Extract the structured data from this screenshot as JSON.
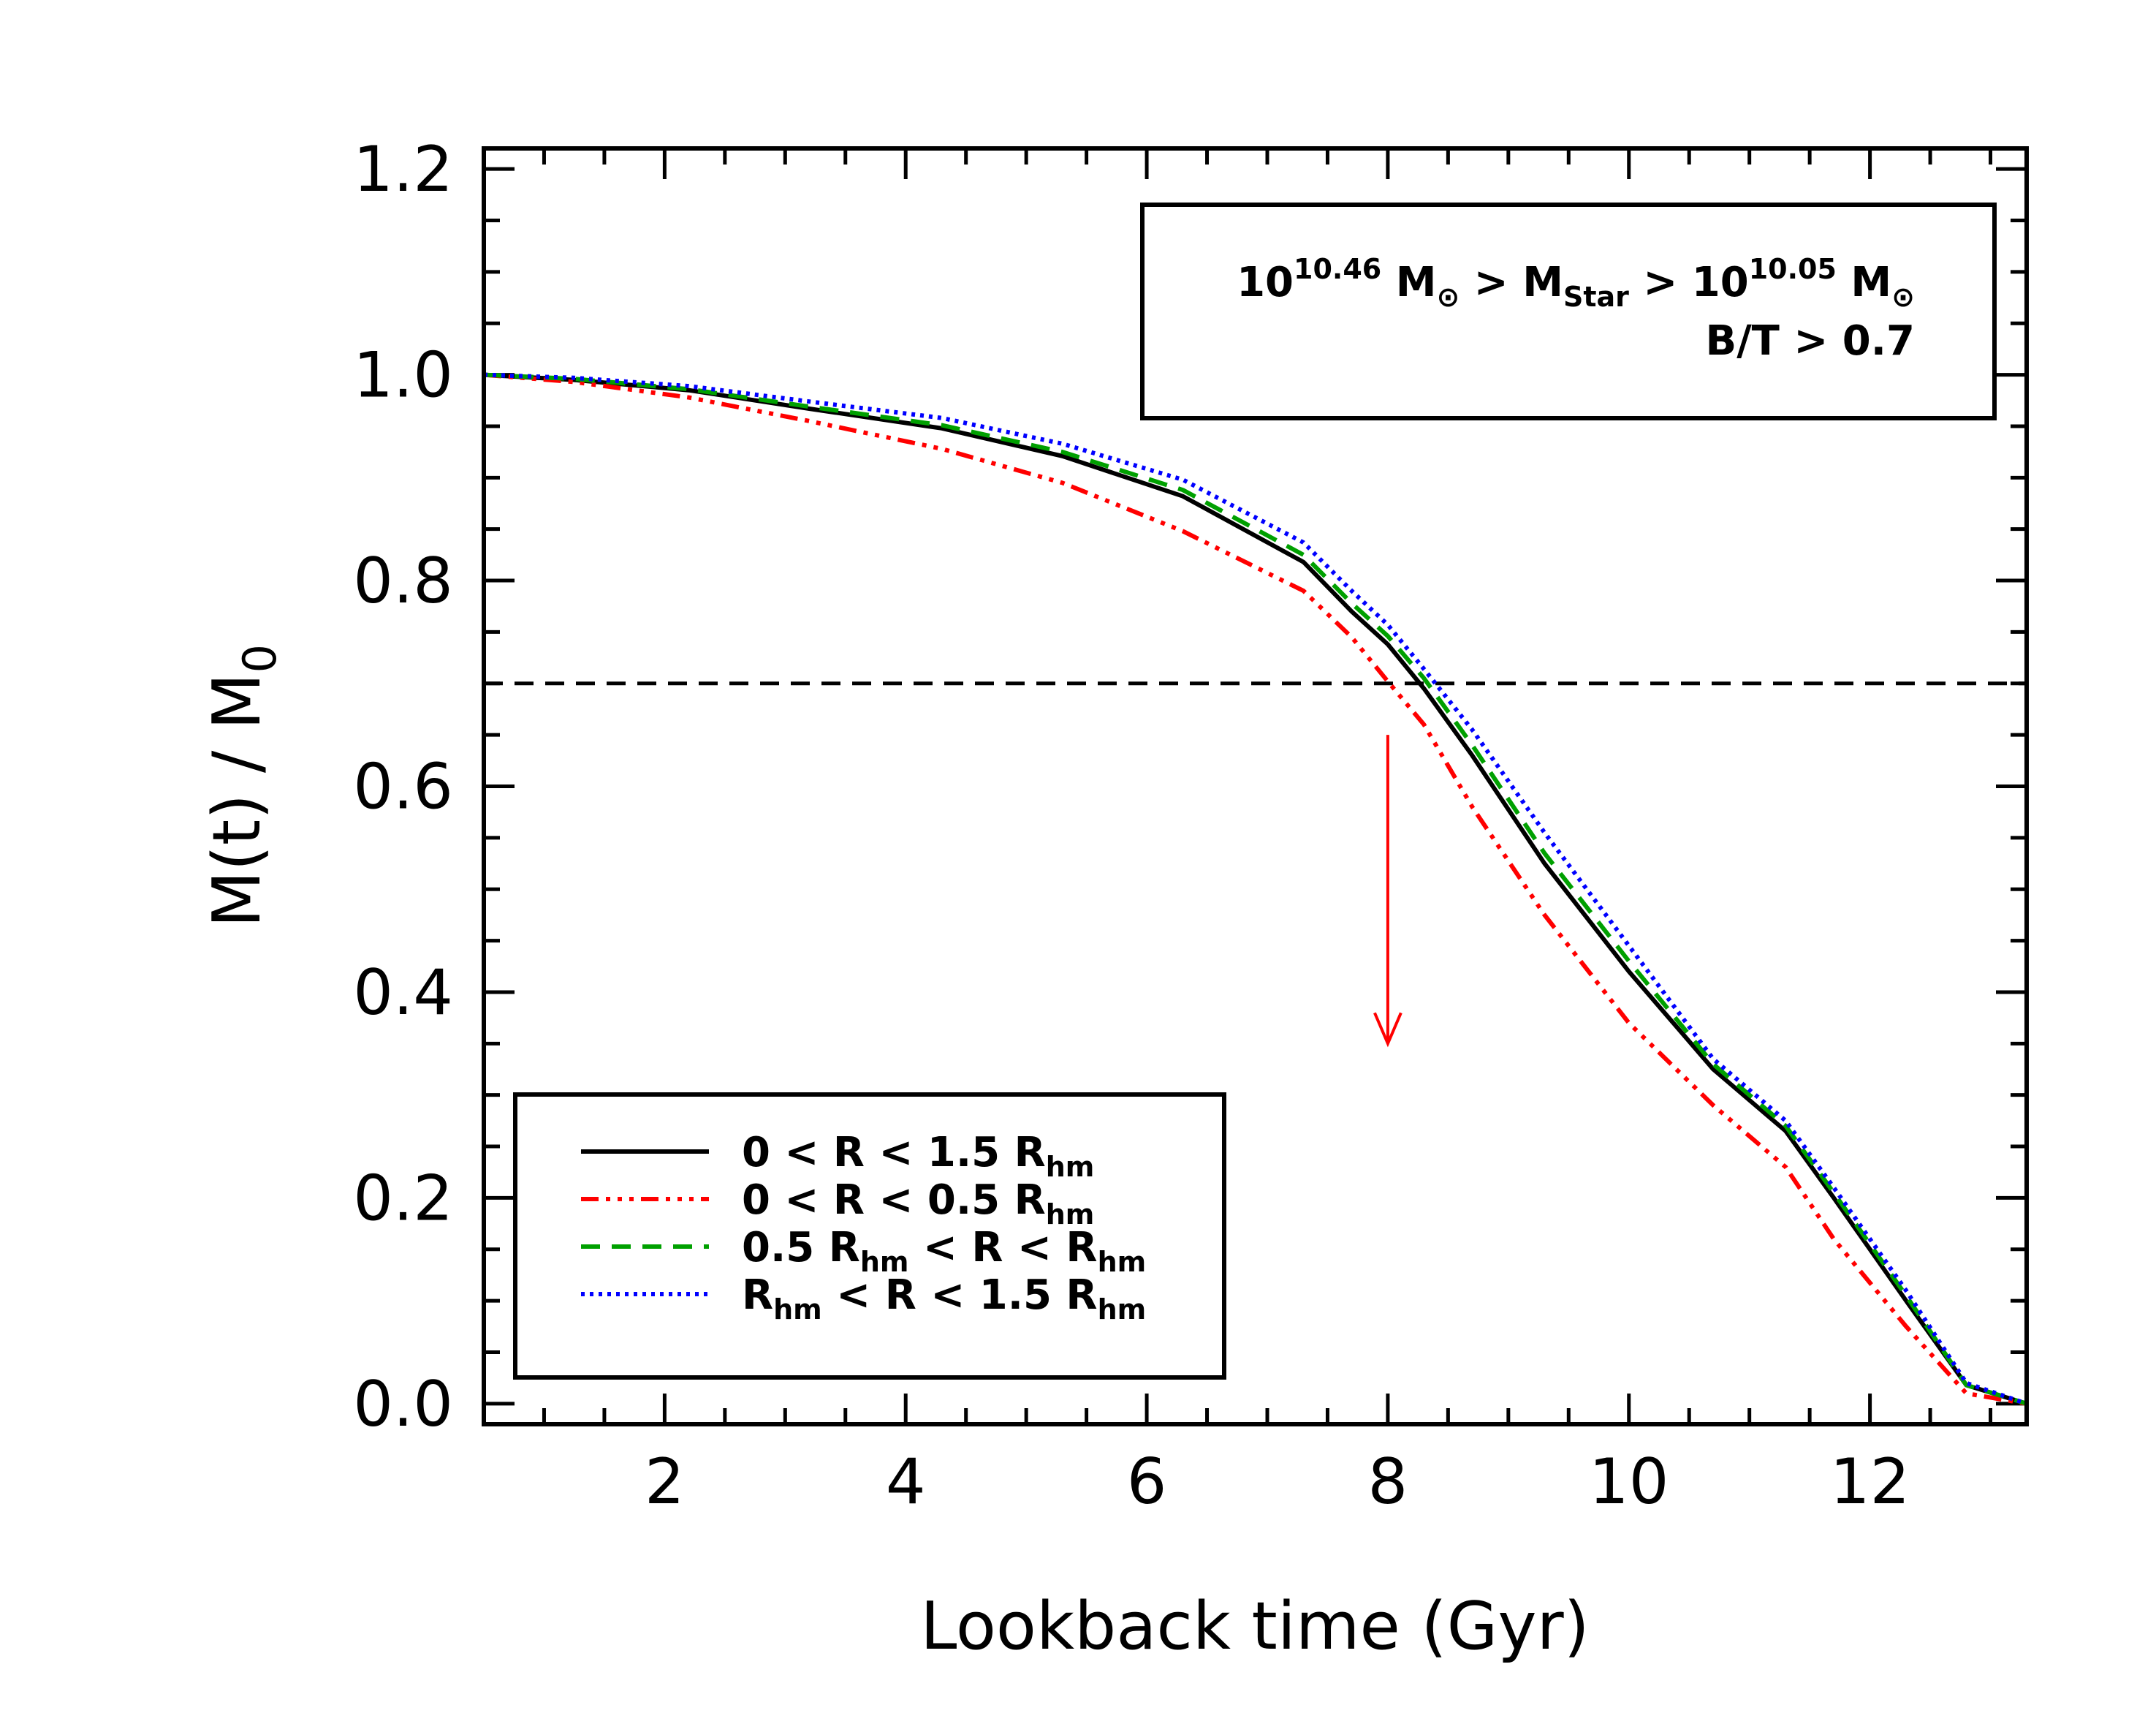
{
  "chart_data": {
    "type": "line",
    "xlabel": "Lookback time (Gyr)",
    "ylabel": "M(t) / M",
    "ylabel_sub": "0",
    "xlim": [
      0.5,
      13.3
    ],
    "ylim": [
      -0.02,
      1.22
    ],
    "xticks": [
      "2",
      "4",
      "6",
      "8",
      "10",
      "12"
    ],
    "yticks": [
      "0.0",
      "0.2",
      "0.4",
      "0.6",
      "0.8",
      "1.0",
      "1.2"
    ],
    "hline": {
      "y": 0.7,
      "style": "dashed",
      "color": "#000000"
    },
    "arrow": {
      "x": 8.0,
      "y_start": 0.65,
      "y_end": 0.35,
      "color": "#ff0000"
    },
    "info_box": {
      "line1": {
        "p1": "10",
        "e1": "10.46",
        "p2": " M",
        "s2": "⊙",
        "p3": " > M",
        "s3": "Star",
        "p4": " > 10",
        "e4": "10.05",
        "p5": " M",
        "s5": "⊙"
      },
      "line2": "B/T > 0.7"
    },
    "series": [
      {
        "name": "0 < R < 1.5 R_hm",
        "label": {
          "a": "0 < R < 1.5 R",
          "a_sub": "hm",
          "b": "",
          "b_sub": "",
          "c": ""
        },
        "color": "#000000",
        "dash": "none",
        "x": [
          0.5,
          1.25,
          2.2,
          3.2,
          4.3,
          5.3,
          6.3,
          7.3,
          7.7,
          8.0,
          8.3,
          8.7,
          9.3,
          10.0,
          10.7,
          11.3,
          11.7,
          12.3,
          12.8,
          13.3
        ],
        "y": [
          1.0,
          0.995,
          0.985,
          0.967,
          0.948,
          0.921,
          0.882,
          0.818,
          0.77,
          0.738,
          0.695,
          0.63,
          0.525,
          0.42,
          0.325,
          0.265,
          0.2,
          0.1,
          0.018,
          0.0
        ]
      },
      {
        "name": "0 < R < 0.5 R_hm",
        "label": {
          "a": "0 < R < 0.5 R",
          "a_sub": "hm",
          "b": "",
          "b_sub": "",
          "c": ""
        },
        "color": "#ff0000",
        "dash": "24,10,6,10,6,10,6,10",
        "x": [
          0.5,
          1.25,
          2.2,
          3.2,
          4.3,
          5.3,
          6.3,
          7.3,
          7.7,
          8.0,
          8.3,
          8.7,
          9.3,
          10.0,
          10.7,
          11.3,
          11.7,
          12.3,
          12.8,
          13.3
        ],
        "y": [
          1.0,
          0.993,
          0.978,
          0.955,
          0.928,
          0.895,
          0.848,
          0.79,
          0.745,
          0.702,
          0.66,
          0.58,
          0.475,
          0.37,
          0.29,
          0.23,
          0.16,
          0.075,
          0.01,
          0.0
        ]
      },
      {
        "name": "0.5 R_hm < R < R_hm",
        "label": {
          "a": "0.5 R",
          "a_sub": "hm",
          "b": " < R <  R",
          "b_sub": "hm",
          "c": ""
        },
        "color": "#00a000",
        "dash": "26,16",
        "x": [
          0.5,
          1.25,
          2.2,
          3.2,
          4.3,
          5.3,
          6.3,
          7.3,
          7.7,
          8.0,
          8.3,
          8.7,
          9.3,
          10.0,
          10.7,
          11.3,
          11.7,
          12.3,
          12.8,
          13.3
        ],
        "y": [
          1.0,
          0.996,
          0.986,
          0.969,
          0.951,
          0.925,
          0.888,
          0.825,
          0.778,
          0.746,
          0.705,
          0.64,
          0.535,
          0.43,
          0.33,
          0.27,
          0.205,
          0.105,
          0.018,
          0.0
        ]
      },
      {
        "name": "R_hm < R < 1.5 R_hm",
        "label": {
          "a": "R",
          "a_sub": "hm",
          "b": " < R < 1.5 R",
          "b_sub": "hm",
          "c": ""
        },
        "color": "#0000ff",
        "dash": "5,7",
        "x": [
          0.5,
          1.25,
          2.2,
          3.2,
          4.3,
          5.3,
          6.3,
          7.3,
          7.7,
          8.0,
          8.3,
          8.7,
          9.3,
          10.0,
          10.7,
          11.3,
          11.7,
          12.3,
          12.8,
          13.3
        ],
        "y": [
          1.0,
          0.997,
          0.989,
          0.974,
          0.958,
          0.933,
          0.898,
          0.837,
          0.79,
          0.757,
          0.714,
          0.655,
          0.555,
          0.445,
          0.335,
          0.275,
          0.21,
          0.11,
          0.02,
          0.0
        ]
      }
    ]
  }
}
